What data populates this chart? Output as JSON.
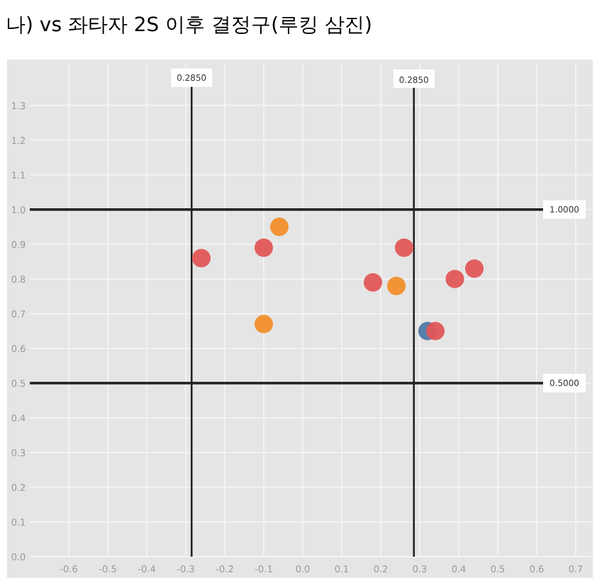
{
  "chart_data": {
    "type": "scatter",
    "title": "나) vs 좌타자 2S 이후 결정구(루킹 삼진)",
    "x": [
      -0.26,
      -0.1,
      -0.06,
      -0.1,
      0.18,
      0.24,
      0.26,
      0.32,
      0.34,
      0.39,
      0.44
    ],
    "values": [
      0.86,
      0.89,
      0.95,
      0.67,
      0.79,
      0.78,
      0.89,
      0.65,
      0.65,
      0.8,
      0.83
    ],
    "colors": [
      "#e15759",
      "#e15759",
      "#f28e2b",
      "#f28e2b",
      "#e15759",
      "#f28e2b",
      "#e15759",
      "#4e79a7",
      "#e15759",
      "#e15759",
      "#e15759"
    ],
    "marker": "circle",
    "xlim": [
      -0.7,
      0.74
    ],
    "ylim": [
      0,
      1.42
    ],
    "xticks": [
      {
        "value": -0.6,
        "label": "-0.6"
      },
      {
        "value": -0.5,
        "label": "-0.5"
      },
      {
        "value": -0.4,
        "label": "-0.4"
      },
      {
        "value": -0.3,
        "label": "-0.3"
      },
      {
        "value": -0.2,
        "label": "-0.2"
      },
      {
        "value": -0.1,
        "label": "-0.1"
      },
      {
        "value": 0,
        "label": "0.0"
      },
      {
        "value": 0.1,
        "label": "0.1"
      },
      {
        "value": 0.2,
        "label": "0.2"
      },
      {
        "value": 0.3,
        "label": "0.3"
      },
      {
        "value": 0.4,
        "label": "0.4"
      },
      {
        "value": 0.5,
        "label": "0.5"
      },
      {
        "value": 0.6,
        "label": "0.6"
      },
      {
        "value": 0.7,
        "label": "0.7"
      }
    ],
    "yticks": [
      {
        "value": 0,
        "label": "0.0"
      },
      {
        "value": 0.1,
        "label": "0.1"
      },
      {
        "value": 0.2,
        "label": "0.2"
      },
      {
        "value": 0.3,
        "label": "0.3"
      },
      {
        "value": 0.4,
        "label": "0.4"
      },
      {
        "value": 0.5,
        "label": "0.5"
      },
      {
        "value": 0.6,
        "label": "0.6"
      },
      {
        "value": 0.7,
        "label": "0.7"
      },
      {
        "value": 0.8,
        "label": "0.8"
      },
      {
        "value": 0.9,
        "label": "0.9"
      },
      {
        "value": 1.0,
        "label": "1.0"
      },
      {
        "value": 1.1,
        "label": "1.1"
      },
      {
        "value": 1.2,
        "label": "1.2"
      },
      {
        "value": 1.3,
        "label": "1.3"
      }
    ],
    "grid": true,
    "annotations": [
      {
        "text": "0.2850",
        "x": -0.285,
        "y": 1.38
      }
    ],
    "ref_lines": [
      {
        "axis": "x",
        "value": -0.285
      },
      {
        "axis": "x",
        "value": 0.285,
        "label": "0.2850"
      },
      {
        "axis": "y",
        "value": 1.0,
        "label": "1.0000"
      },
      {
        "axis": "y",
        "value": 0.5,
        "label": "0.5000"
      }
    ]
  }
}
